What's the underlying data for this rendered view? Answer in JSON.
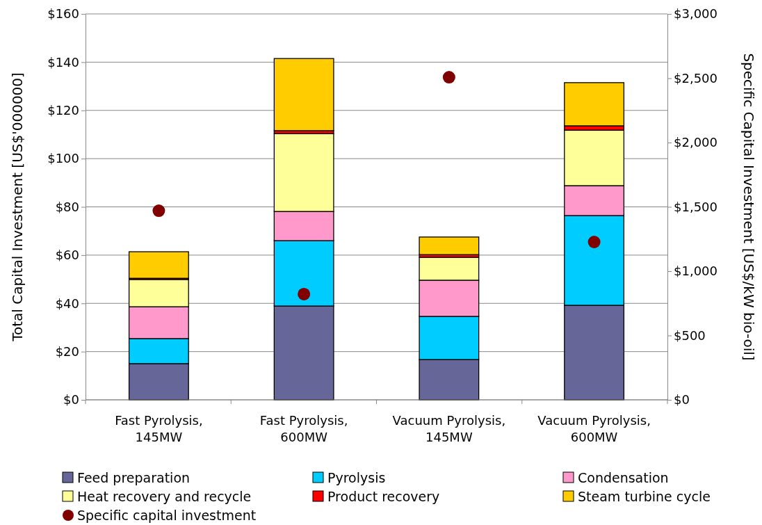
{
  "chart_data": {
    "type": "bar",
    "stacked": true,
    "categories": [
      "Fast Pyrolysis,\n145MW",
      "Fast Pyrolysis,\n600MW",
      "Vacuum Pyrolysis,\n145MW",
      "Vacuum Pyrolysis,\n600MW"
    ],
    "ylabel": "Total Capital Investment [US$'000000]",
    "y2label": "Specific Capital Investment [US$/kW bio-oil]",
    "ylim": [
      0,
      160
    ],
    "yticks": [
      {
        "value": 0,
        "label": "$0"
      },
      {
        "value": 20,
        "label": "$20"
      },
      {
        "value": 40,
        "label": "$40"
      },
      {
        "value": 60,
        "label": "$60"
      },
      {
        "value": 80,
        "label": "$80"
      },
      {
        "value": 100,
        "label": "$100"
      },
      {
        "value": 120,
        "label": "$120"
      },
      {
        "value": 140,
        "label": "$140"
      },
      {
        "value": 160,
        "label": "$160"
      }
    ],
    "y2lim": [
      0,
      3000
    ],
    "y2ticks": [
      {
        "value": 0,
        "label": "$0"
      },
      {
        "value": 500,
        "label": "$500"
      },
      {
        "value": 1000,
        "label": "$1,000"
      },
      {
        "value": 1500,
        "label": "$1,500"
      },
      {
        "value": 2000,
        "label": "$2,000"
      },
      {
        "value": 2500,
        "label": "$2,500"
      },
      {
        "value": 3000,
        "label": "$3,000"
      }
    ],
    "grid": "y",
    "legend": "bottom",
    "series": [
      {
        "name": "Feed preparation",
        "color": "#666699",
        "values": [
          15.0,
          38.9,
          16.7,
          39.2
        ]
      },
      {
        "name": "Pyrolysis",
        "color": "#00ccff",
        "values": [
          10.4,
          27.1,
          17.9,
          37.2
        ]
      },
      {
        "name": "Condensation",
        "color": "#ff99cc",
        "values": [
          13.2,
          12.1,
          15.0,
          12.4
        ]
      },
      {
        "name": "Heat recovery and recycle",
        "color": "#ffff99",
        "values": [
          11.3,
          32.3,
          9.5,
          23.0
        ]
      },
      {
        "name": "Product recovery",
        "color": "#ff0000",
        "values": [
          0.5,
          1.2,
          1.1,
          1.8
        ]
      },
      {
        "name": "Steam turbine cycle",
        "color": "#ffcc00",
        "values": [
          11.0,
          29.9,
          7.3,
          17.9
        ]
      },
      {
        "name": "Specific capital investment",
        "type": "scatter",
        "axis": "y2",
        "marker": "circle",
        "color": "#800000",
        "x": [
          "Fast Pyrolysis,\n145MW",
          "Fast Pyrolysis,\n600MW",
          "Vacuum Pyrolysis,\n145MW",
          "Vacuum Pyrolysis,\n600MW"
        ],
        "values": [
          1470,
          822,
          2508,
          1227
        ]
      }
    ]
  }
}
